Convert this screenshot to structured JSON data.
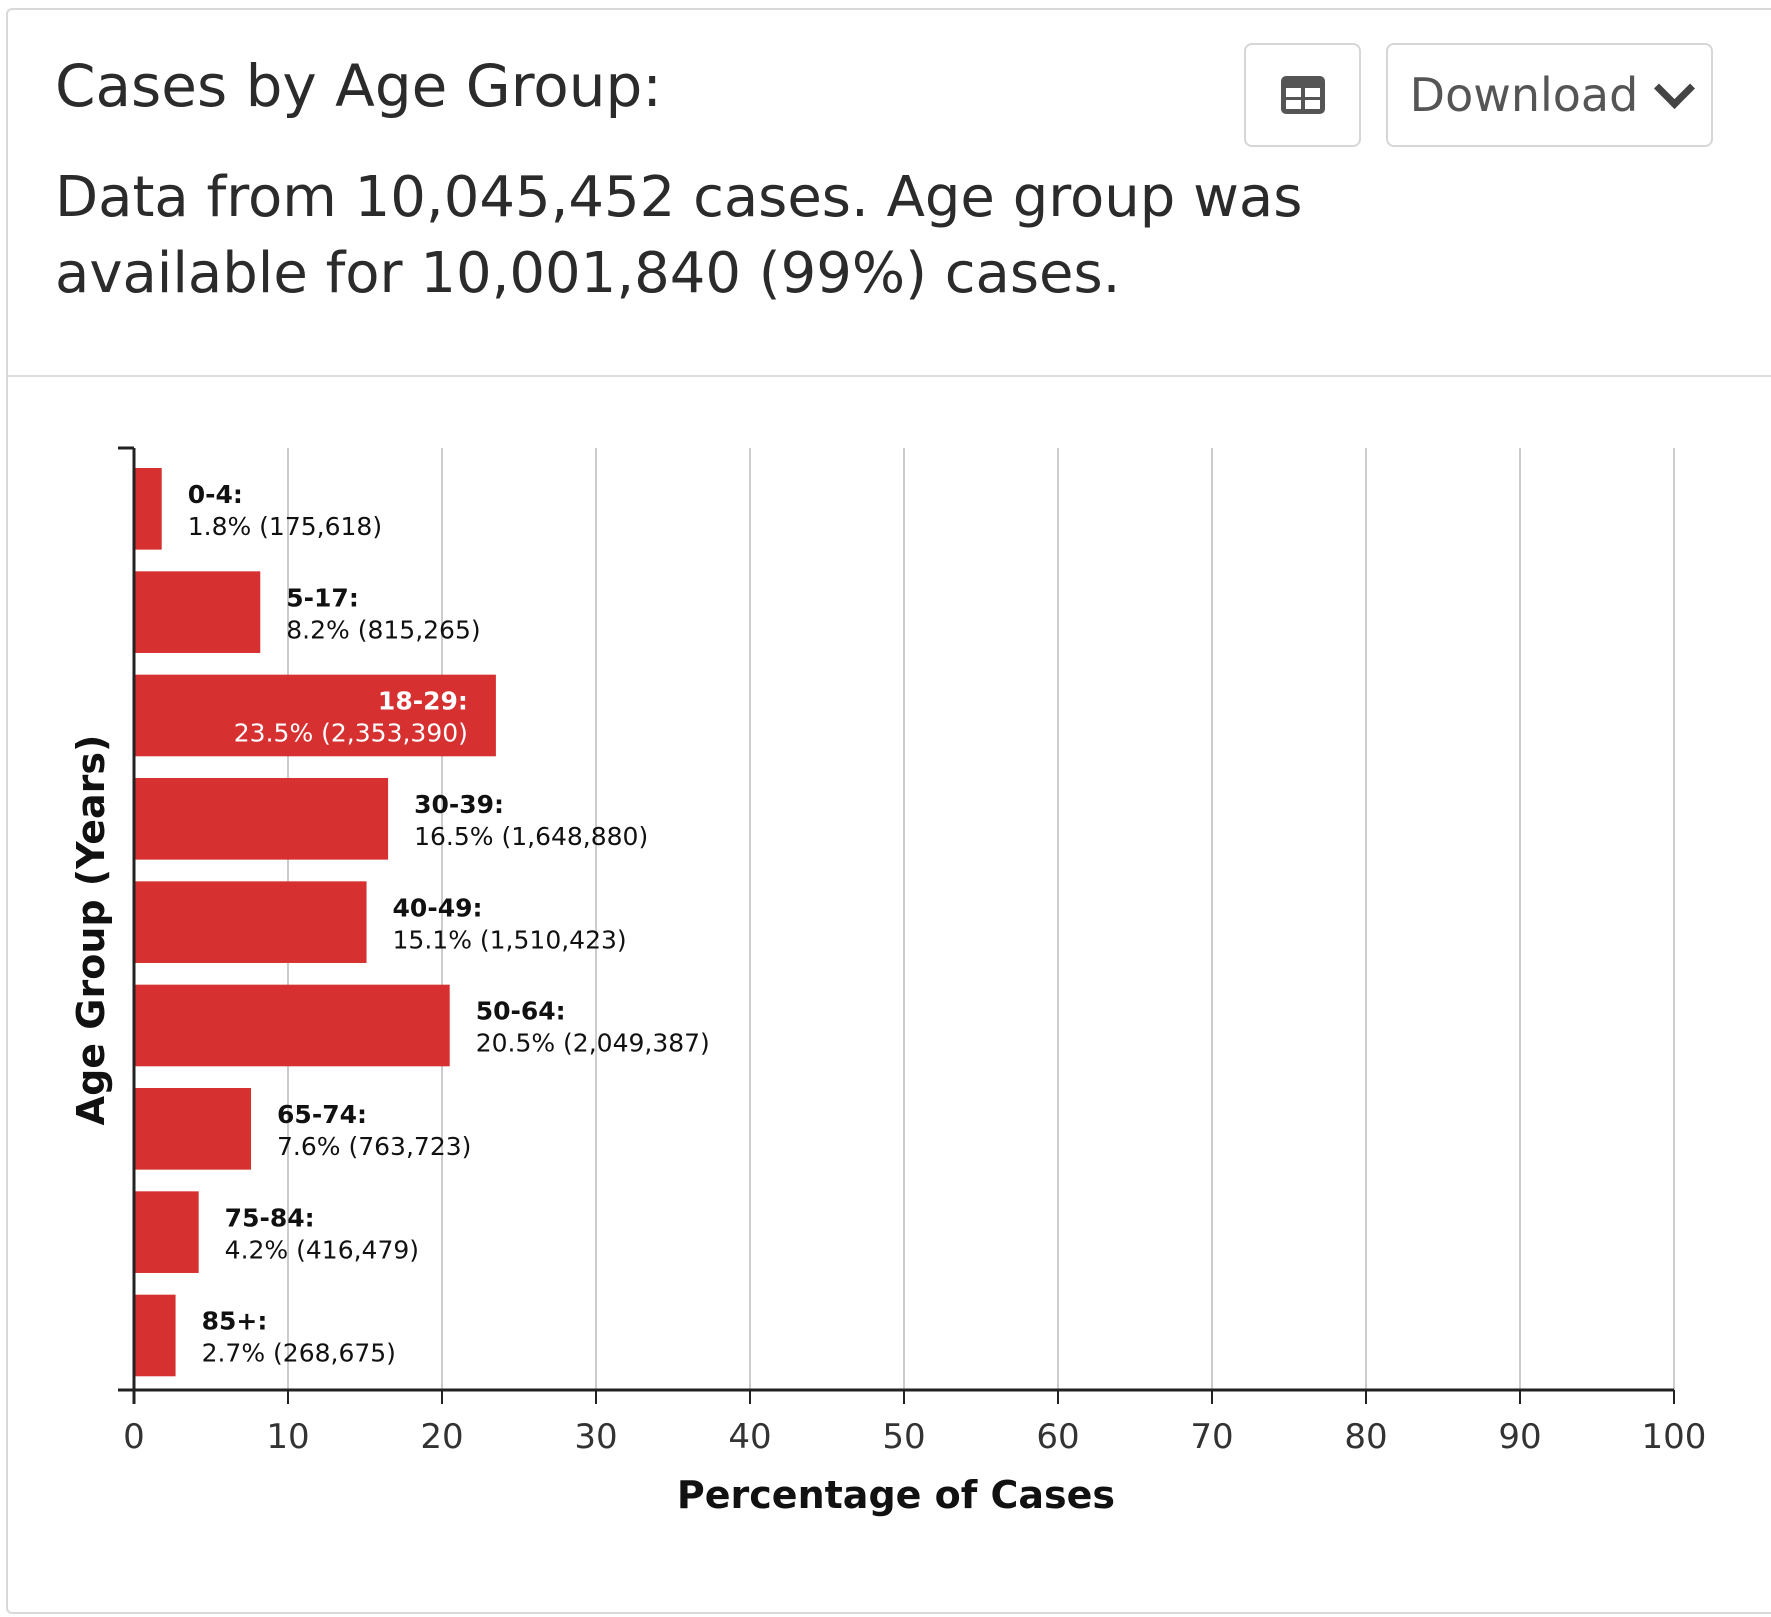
{
  "header": {
    "title": "Cases by Age Group:",
    "subtitle": "Data from 10,045,452 cases. Age group was available for 10,001,840 (99%) cases.",
    "table_button_icon": "table-icon",
    "download_label": "Download",
    "download_icon": "chevron-down-icon"
  },
  "colors": {
    "bar": "#d63031",
    "grid": "#cccccc",
    "axis": "#222222"
  },
  "chart_data": {
    "type": "bar",
    "orientation": "horizontal",
    "xlabel": "Percentage of Cases",
    "ylabel": "Age Group (Years)",
    "xlim": [
      0,
      100
    ],
    "xticks": [
      0,
      10,
      20,
      30,
      40,
      50,
      60,
      70,
      80,
      90,
      100
    ],
    "grid": true,
    "legend": "none",
    "categories": [
      "0-4",
      "5-17",
      "18-29",
      "30-39",
      "40-49",
      "50-64",
      "65-74",
      "75-84",
      "85+"
    ],
    "values": [
      1.8,
      8.2,
      23.5,
      16.5,
      15.1,
      20.5,
      7.6,
      4.2,
      2.7
    ],
    "labels": [
      {
        "name": "0-4:",
        "detail": "1.8% (175,618)"
      },
      {
        "name": "5-17:",
        "detail": "8.2% (815,265)"
      },
      {
        "name": "18-29:",
        "detail": "23.5% (2,353,390)"
      },
      {
        "name": "30-39:",
        "detail": "16.5% (1,648,880)"
      },
      {
        "name": "40-49:",
        "detail": "15.1% (1,510,423)"
      },
      {
        "name": "50-64:",
        "detail": "20.5% (2,049,387)"
      },
      {
        "name": "65-74:",
        "detail": "7.6% (763,723)"
      },
      {
        "name": "75-84:",
        "detail": "4.2% (416,479)"
      },
      {
        "name": "85+:",
        "detail": "2.7% (268,675)"
      }
    ]
  }
}
